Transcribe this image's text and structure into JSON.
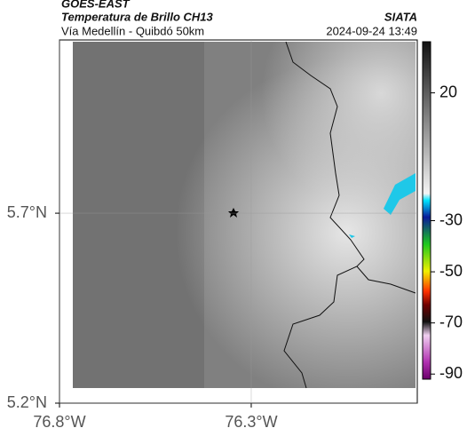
{
  "header": {
    "source": "GOES-EAST",
    "title": "Temperatura de Brillo CH13",
    "subtitle": "Vía Medellín - Quibdó 50km",
    "brand": "SIATA",
    "timestamp": "2024-09-24 13:49"
  },
  "map": {
    "xlim": [
      -76.8,
      -75.867
    ],
    "ylim": [
      5.2,
      6.156
    ],
    "xticks": [
      {
        "value": -76.8,
        "label": "76.8°W"
      },
      {
        "value": -76.3,
        "label": "76.3°W"
      }
    ],
    "yticks": [
      {
        "value": 5.7,
        "label": "5.7°N"
      },
      {
        "value": 5.2,
        "label": "5.2°N"
      }
    ],
    "grid": true
  },
  "colorbar": {
    "lim": [
      40,
      -92
    ],
    "ticks": [
      20,
      -30,
      -50,
      -70,
      -90
    ]
  }
}
